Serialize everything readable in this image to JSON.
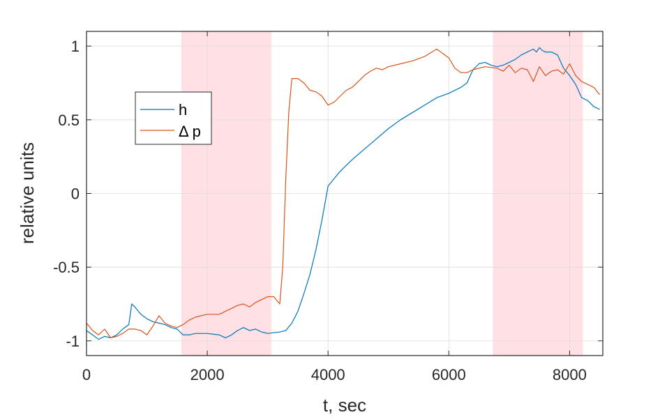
{
  "chart_data": {
    "type": "line",
    "xlabel": "t, sec",
    "ylabel": "relative units",
    "xlim": [
      0,
      8550
    ],
    "ylim": [
      -1.1,
      1.1
    ],
    "xticks": [
      0,
      2000,
      4000,
      6000,
      8000
    ],
    "xtick_labels": [
      "0",
      "2000",
      "4000",
      "6000",
      "8000"
    ],
    "yticks": [
      -1,
      -0.5,
      0,
      0.5,
      1
    ],
    "ytick_labels": [
      "-1",
      "-0.5",
      "0",
      "0.5",
      "1"
    ],
    "grid": true,
    "legend_location": "upper-left",
    "shaded_regions": [
      {
        "x_start": 1570,
        "x_end": 3060,
        "color": "#ffe0e4"
      },
      {
        "x_start": 6730,
        "x_end": 8220,
        "color": "#ffe0e4"
      }
    ],
    "series": [
      {
        "name": "h",
        "color": "#0072bd",
        "x": [
          0,
          100,
          200,
          300,
          400,
          500,
          600,
          700,
          750,
          800,
          900,
          1000,
          1100,
          1200,
          1300,
          1400,
          1500,
          1600,
          1700,
          1800,
          2000,
          2200,
          2300,
          2400,
          2500,
          2600,
          2700,
          2800,
          2900,
          3000,
          3200,
          3300,
          3400,
          3500,
          3600,
          3700,
          3800,
          3900,
          4000,
          4200,
          4400,
          4600,
          4800,
          5000,
          5200,
          5400,
          5600,
          5800,
          6000,
          6200,
          6300,
          6400,
          6500,
          6600,
          6700,
          6800,
          6900,
          7000,
          7100,
          7200,
          7300,
          7400,
          7450,
          7500,
          7550,
          7600,
          7700,
          7800,
          7900,
          8000,
          8100,
          8200,
          8300,
          8400,
          8500
        ],
        "y": [
          -0.93,
          -0.96,
          -0.99,
          -0.97,
          -0.98,
          -0.96,
          -0.92,
          -0.89,
          -0.75,
          -0.77,
          -0.82,
          -0.85,
          -0.87,
          -0.88,
          -0.89,
          -0.91,
          -0.92,
          -0.96,
          -0.96,
          -0.95,
          -0.95,
          -0.96,
          -0.98,
          -0.96,
          -0.93,
          -0.91,
          -0.93,
          -0.92,
          -0.94,
          -0.95,
          -0.94,
          -0.93,
          -0.88,
          -0.8,
          -0.68,
          -0.55,
          -0.38,
          -0.18,
          0.05,
          0.15,
          0.23,
          0.3,
          0.37,
          0.44,
          0.5,
          0.55,
          0.6,
          0.65,
          0.68,
          0.72,
          0.75,
          0.84,
          0.88,
          0.89,
          0.87,
          0.86,
          0.87,
          0.89,
          0.91,
          0.94,
          0.96,
          0.98,
          0.96,
          0.99,
          0.97,
          0.96,
          0.96,
          0.94,
          0.85,
          0.8,
          0.74,
          0.65,
          0.63,
          0.59,
          0.57
        ]
      },
      {
        "name": "Δ p",
        "color": "#d95319",
        "x": [
          0,
          100,
          200,
          300,
          400,
          500,
          600,
          700,
          800,
          900,
          1000,
          1100,
          1200,
          1300,
          1400,
          1500,
          1600,
          1700,
          1800,
          2000,
          2200,
          2300,
          2400,
          2500,
          2600,
          2700,
          2800,
          2900,
          3000,
          3100,
          3200,
          3250,
          3300,
          3350,
          3400,
          3500,
          3600,
          3700,
          3800,
          3900,
          4000,
          4100,
          4200,
          4300,
          4400,
          4500,
          4600,
          4700,
          4800,
          4900,
          5000,
          5200,
          5400,
          5600,
          5800,
          5900,
          6000,
          6100,
          6200,
          6300,
          6400,
          6600,
          6800,
          6900,
          7000,
          7100,
          7200,
          7300,
          7400,
          7500,
          7600,
          7700,
          7800,
          7900,
          8000,
          8100,
          8200,
          8300,
          8400,
          8500
        ],
        "y": [
          -0.88,
          -0.93,
          -0.96,
          -0.92,
          -0.98,
          -0.97,
          -0.95,
          -0.92,
          -0.92,
          -0.93,
          -0.96,
          -0.9,
          -0.83,
          -0.88,
          -0.9,
          -0.91,
          -0.89,
          -0.86,
          -0.84,
          -0.82,
          -0.82,
          -0.8,
          -0.78,
          -0.76,
          -0.75,
          -0.77,
          -0.74,
          -0.72,
          -0.7,
          -0.7,
          -0.75,
          -0.5,
          0.1,
          0.55,
          0.78,
          0.78,
          0.75,
          0.7,
          0.69,
          0.66,
          0.6,
          0.62,
          0.66,
          0.7,
          0.72,
          0.76,
          0.8,
          0.83,
          0.85,
          0.84,
          0.86,
          0.88,
          0.9,
          0.93,
          0.98,
          0.95,
          0.92,
          0.85,
          0.82,
          0.82,
          0.84,
          0.86,
          0.85,
          0.83,
          0.87,
          0.82,
          0.85,
          0.84,
          0.76,
          0.86,
          0.8,
          0.83,
          0.84,
          0.81,
          0.88,
          0.8,
          0.76,
          0.74,
          0.72,
          0.67
        ]
      }
    ]
  }
}
